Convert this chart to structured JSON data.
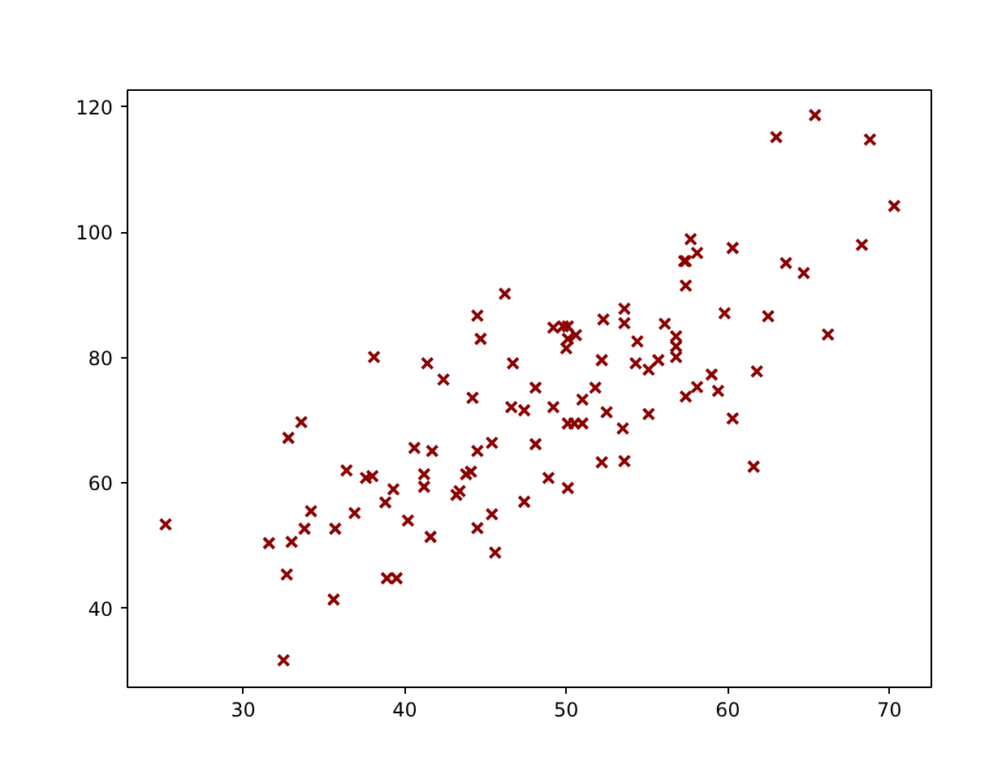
{
  "chart_data": {
    "type": "scatter",
    "marker": "cross",
    "grid": false,
    "xlim": [
      22.84,
      72.6
    ],
    "ylim": [
      27.4,
      122.7
    ],
    "xticks": [
      30,
      40,
      50,
      60,
      70
    ],
    "yticks": [
      40,
      60,
      80,
      100,
      120
    ],
    "series": [
      {
        "color": "#8b0000",
        "x": [
          25.2,
          31.6,
          32.7,
          32.5,
          32.8,
          33.6,
          33.0,
          33.8,
          34.2,
          35.6,
          35.7,
          36.4,
          36.9,
          37.6,
          38.0,
          38.1,
          38.8,
          38.9,
          39.5,
          39.3,
          40.2,
          40.6,
          41.2,
          41.2,
          41.4,
          41.6,
          41.7,
          42.4,
          43.2,
          43.4,
          43.8,
          44.1,
          44.2,
          44.5,
          44.7,
          44.5,
          44.5,
          45.4,
          45.4,
          45.6,
          46.2,
          46.7,
          46.6,
          47.4,
          47.4,
          48.1,
          48.1,
          48.9,
          49.2,
          49.2,
          49.8,
          50.1,
          50.0,
          50.1,
          50.6,
          50.1,
          50.1,
          50.5,
          51.0,
          51.0,
          51.8,
          52.2,
          52.3,
          52.2,
          52.5,
          53.5,
          53.6,
          53.6,
          53.6,
          54.4,
          54.3,
          55.1,
          55.1,
          55.7,
          56.1,
          56.8,
          56.8,
          56.8,
          57.3,
          57.4,
          57.4,
          57.4,
          57.7,
          58.1,
          58.1,
          59.0,
          59.4,
          59.8,
          60.3,
          60.3,
          61.6,
          61.8,
          62.5,
          63.0,
          63.6,
          64.7,
          65.4,
          66.2,
          68.3,
          68.8,
          70.3
        ],
        "values": [
          53.4,
          50.4,
          45.4,
          31.7,
          67.2,
          69.7,
          50.6,
          52.7,
          55.5,
          41.4,
          52.7,
          62.0,
          55.2,
          60.8,
          61.1,
          80.1,
          56.9,
          44.8,
          44.8,
          59.0,
          54.0,
          65.6,
          61.4,
          59.4,
          79.1,
          51.4,
          65.1,
          76.5,
          58.1,
          58.7,
          61.4,
          61.8,
          73.6,
          86.7,
          83.0,
          52.8,
          65.1,
          66.4,
          55.0,
          48.9,
          90.2,
          79.1,
          72.1,
          71.6,
          57.0,
          75.2,
          66.2,
          60.8,
          72.1,
          84.8,
          85.0,
          85.0,
          81.5,
          83.0,
          83.6,
          59.2,
          69.5,
          69.5,
          69.5,
          73.3,
          75.2,
          63.3,
          86.1,
          79.6,
          71.3,
          68.7,
          63.5,
          87.8,
          85.5,
          82.6,
          79.1,
          78.1,
          71.0,
          79.6,
          85.4,
          83.4,
          81.8,
          80.1,
          95.4,
          95.4,
          91.5,
          73.8,
          98.9,
          96.7,
          75.3,
          77.3,
          74.7,
          87.1,
          97.5,
          70.3,
          62.6,
          77.8,
          86.6,
          115.2,
          95.1,
          93.5,
          118.7,
          83.7,
          98.0,
          114.8,
          104.2
        ]
      }
    ]
  }
}
